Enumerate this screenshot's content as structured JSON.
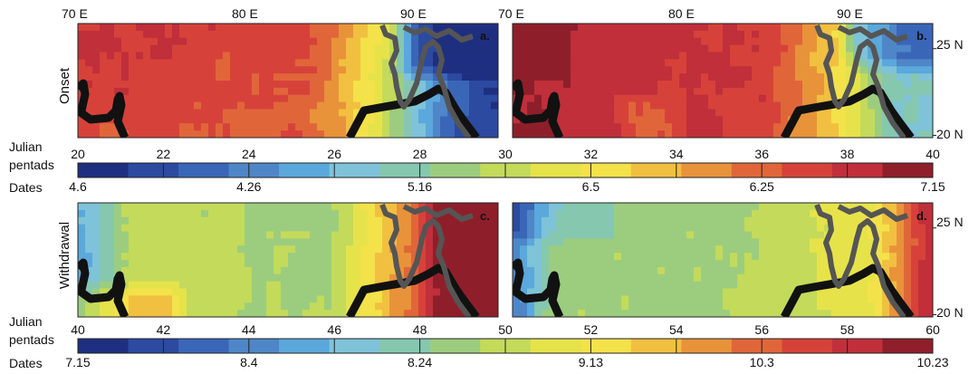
{
  "figure": {
    "top_axis_labels": [
      "70 E",
      "80 E",
      "90 E"
    ],
    "right_axis_labels": [
      "25 N",
      "20 N"
    ],
    "rows": [
      {
        "label": "Onset",
        "panels": [
          "a.",
          "b."
        ]
      },
      {
        "label": "Withdrawal",
        "panels": [
          "c.",
          "d."
        ]
      }
    ],
    "colorbar_labels": {
      "pentads": [
        "Julian",
        "pentads"
      ],
      "dates": "Dates"
    }
  },
  "chart_data": [
    {
      "type": "heatmap",
      "title": "",
      "row": "Onset",
      "panels": [
        "a.",
        "b."
      ],
      "x_ticks": [
        "70 E",
        "80 E",
        "90 E"
      ],
      "y_ticks": [
        "25 N",
        "20 N"
      ],
      "colorbar": {
        "label": "Julian pentads",
        "range": [
          20,
          40
        ],
        "ticks": [
          20,
          22,
          24,
          26,
          28,
          30,
          32,
          34,
          36,
          38,
          40
        ],
        "date_label": "Dates",
        "date_ticks": [
          "4.6",
          "4.26",
          "5.16",
          "6.5",
          "6.25",
          "7.15"
        ]
      }
    },
    {
      "type": "heatmap",
      "title": "",
      "row": "Withdrawal",
      "panels": [
        "c.",
        "d."
      ],
      "x_ticks": [
        "70 E",
        "80 E",
        "90 E"
      ],
      "y_ticks": [
        "25 N",
        "20 N"
      ],
      "colorbar": {
        "label": "Julian pentads",
        "range": [
          40,
          60
        ],
        "ticks": [
          40,
          42,
          44,
          46,
          48,
          50,
          52,
          54,
          56,
          58,
          60
        ],
        "date_label": "Dates",
        "date_ticks": [
          "7.15",
          "8.4",
          "8.24",
          "9.13",
          "10.3",
          "10.23"
        ]
      }
    }
  ],
  "colormap": [
    "#1f2f80",
    "#2b4aa0",
    "#3a66b8",
    "#4f86c8",
    "#5aa8dc",
    "#7fc3d9",
    "#86c7b0",
    "#9ccd7e",
    "#c4da5a",
    "#e6e34a",
    "#f3e24a",
    "#f1c040",
    "#e8933a",
    "#e0663a",
    "#d6423a",
    "#c02f3a",
    "#8e1f2a"
  ]
}
